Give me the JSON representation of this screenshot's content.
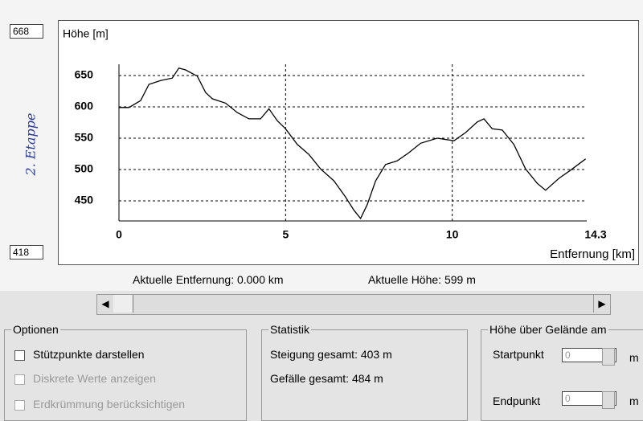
{
  "chart_data": {
    "type": "line",
    "y_label": "Höhe [m]",
    "x_label": "Entfernung [km]",
    "x": [
      0,
      0.3,
      0.65,
      0.9,
      1.25,
      1.6,
      1.8,
      2.0,
      2.35,
      2.6,
      2.8,
      3.2,
      3.55,
      3.9,
      4.25,
      4.5,
      4.75,
      5.0,
      5.35,
      5.7,
      6.05,
      6.45,
      6.8,
      7.05,
      7.25,
      7.45,
      7.7,
      8.0,
      8.35,
      8.7,
      9.05,
      9.55,
      10.05,
      10.4,
      10.75,
      10.95,
      11.2,
      11.5,
      11.85,
      12.2,
      12.55,
      12.8,
      13.2,
      13.55,
      14.0
    ],
    "values": [
      599,
      599,
      610,
      636,
      642,
      646,
      662,
      659,
      649,
      623,
      613,
      606,
      591,
      581,
      581,
      597,
      578,
      565,
      540,
      524,
      501,
      482,
      456,
      435,
      422,
      444,
      482,
      508,
      514,
      527,
      542,
      550,
      546,
      559,
      576,
      581,
      565,
      563,
      540,
      501,
      478,
      467,
      486,
      499,
      517
    ],
    "color": "#000000",
    "xlim": [
      0,
      14.3
    ],
    "xticks": [
      0,
      5,
      10,
      14.3
    ],
    "ylim": [
      418,
      668
    ],
    "yticks": [
      450,
      500,
      550,
      600,
      650
    ],
    "grid": true
  },
  "note": "2. Etappe",
  "status": {
    "distance": "Aktuelle Entfernung: 0.000 km",
    "height": "Aktuelle Höhe: 599 m"
  },
  "options": {
    "title": "Optionen",
    "items": [
      "Stützpunkte darstellen",
      "Diskrete Werte anzeigen",
      "Erdkrümmung berücksichtigen"
    ]
  },
  "statistics": {
    "title": "Statistik",
    "lines": [
      "Steigung gesamt: 403 m",
      "Gefälle gesamt: 484 m"
    ]
  },
  "height_above": {
    "title": "Höhe über Gelände am",
    "start_label": "Startpunkt",
    "start_value": "0",
    "end_label": "Endpunkt",
    "end_value": "0",
    "unit": "m"
  }
}
